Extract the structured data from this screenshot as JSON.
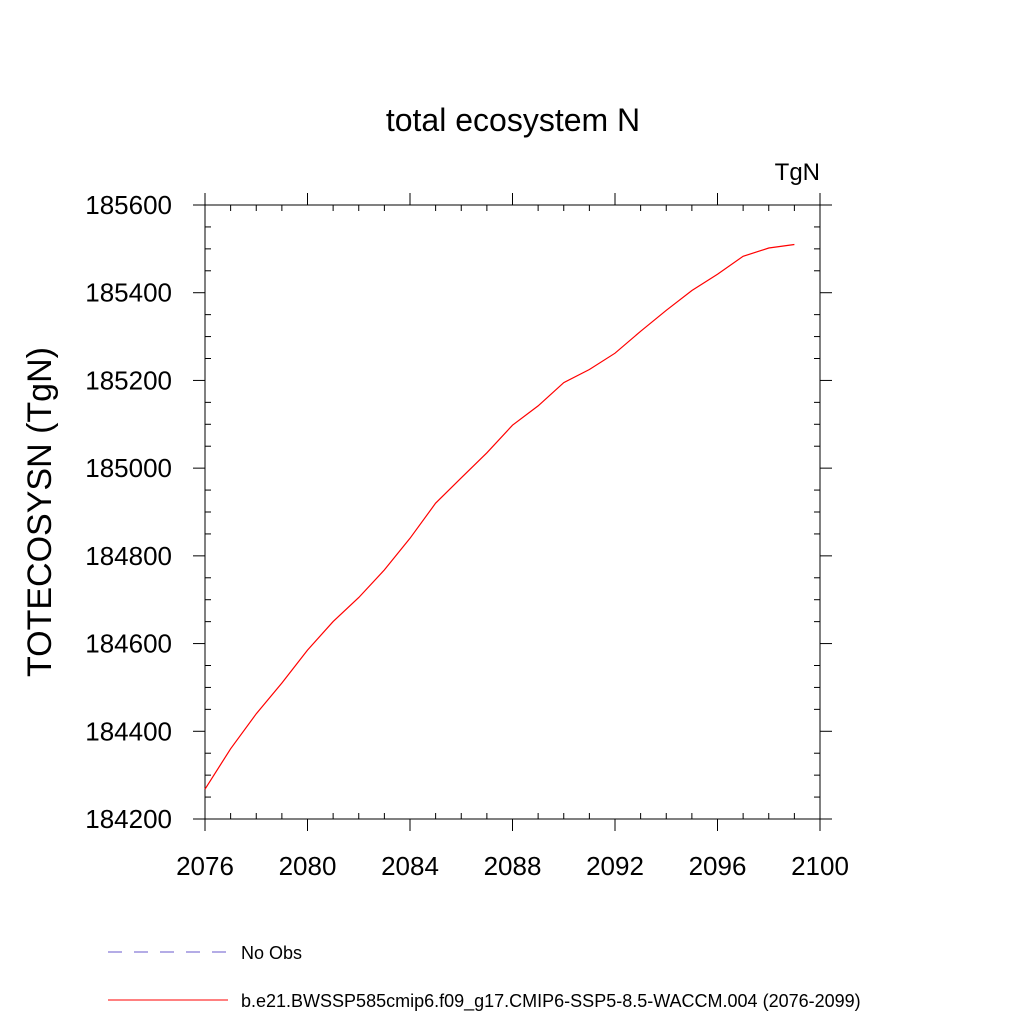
{
  "chart_data": {
    "type": "line",
    "title": "total ecosystem N",
    "units": "TgN",
    "xlabel": "",
    "ylabel": "TOTECOSYSN  (TgN)",
    "xlim": [
      2076,
      2100
    ],
    "ylim": [
      184200,
      185600
    ],
    "x_ticks": [
      2076,
      2080,
      2084,
      2088,
      2092,
      2096,
      2100
    ],
    "y_ticks": [
      184200,
      184400,
      184600,
      184800,
      185000,
      185200,
      185400,
      185600
    ],
    "x_minor_step": 1,
    "y_minor_step": 50,
    "grid": false,
    "legend_position": "bottom",
    "series": [
      {
        "name": "No Obs",
        "color": "#6a5acd",
        "dash": "dashed",
        "x": [],
        "values": []
      },
      {
        "name": "b.e21.BWSSP585cmip6.f09_g17.CMIP6-SSP5-8.5-WACCM.004 (2076-2099)",
        "color": "#ff0000",
        "dash": "solid",
        "x": [
          2076,
          2077,
          2078,
          2079,
          2080,
          2081,
          2082,
          2083,
          2084,
          2085,
          2086,
          2087,
          2088,
          2089,
          2090,
          2091,
          2092,
          2093,
          2094,
          2095,
          2096,
          2097,
          2098,
          2099
        ],
        "values": [
          184268,
          184360,
          184440,
          184510,
          184585,
          184650,
          184705,
          184768,
          184840,
          184920,
          184978,
          185035,
          185098,
          185142,
          185195,
          185225,
          185262,
          185312,
          185360,
          185405,
          185442,
          185483,
          185502,
          185510
        ]
      }
    ]
  }
}
